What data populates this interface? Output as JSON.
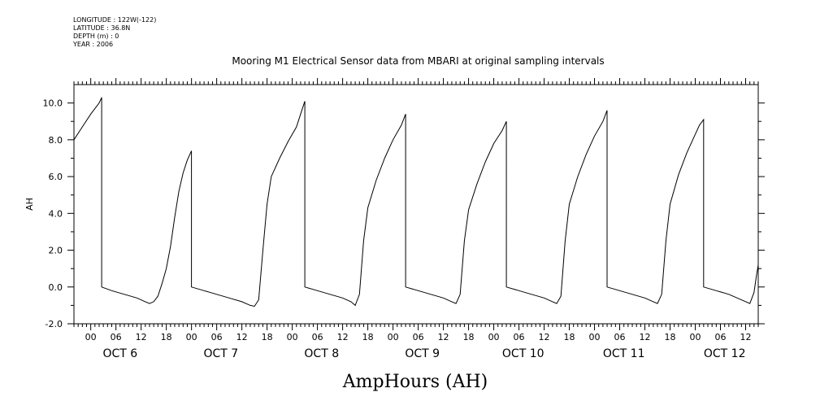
{
  "meta": {
    "longitude": "LONGITUDE : 122W(-122)",
    "latitude": "LATITUDE : 36.8N",
    "depth": "DEPTH (m) : 0",
    "year": "YEAR : 2006"
  },
  "chart_data": {
    "type": "line",
    "title": "Mooring M1 Electrical Sensor data from MBARI at original sampling intervals",
    "xlabel": "AmpHours (AH)",
    "ylabel": "AH",
    "ylim": [
      -2.0,
      11.0
    ],
    "yticks": [
      "-2.0",
      "0.0",
      "2.0",
      "4.0",
      "6.0",
      "8.0",
      "10.0"
    ],
    "ytick_values": [
      -2,
      0,
      2,
      4,
      6,
      8,
      10
    ],
    "xlim_hours": [
      -4,
      159
    ],
    "hour_ticks": [
      "00",
      "06",
      "12",
      "18"
    ],
    "day_labels": [
      "OCT  6",
      "OCT  7",
      "OCT  8",
      "OCT  9",
      "OCT 10",
      "OCT 11",
      "OCT 12"
    ],
    "grid": false,
    "series": [
      {
        "points": [
          [
            -4,
            8.0
          ],
          [
            -2,
            8.7
          ],
          [
            0,
            9.4
          ],
          [
            2,
            10.0
          ],
          [
            2.6,
            10.3
          ],
          [
            2.6,
            0.0
          ],
          [
            5,
            -0.2
          ],
          [
            8,
            -0.4
          ],
          [
            11,
            -0.6
          ],
          [
            13,
            -0.8
          ],
          [
            14,
            -0.9
          ],
          [
            15,
            -0.8
          ],
          [
            16,
            -0.5
          ],
          [
            17,
            0.2
          ],
          [
            18,
            1.0
          ],
          [
            19,
            2.2
          ],
          [
            20,
            3.8
          ],
          [
            21,
            5.2
          ],
          [
            22,
            6.2
          ],
          [
            23,
            6.9
          ],
          [
            24,
            7.4
          ],
          [
            24,
            0.0
          ],
          [
            27,
            -0.2
          ],
          [
            30,
            -0.4
          ],
          [
            33,
            -0.6
          ],
          [
            36,
            -0.8
          ],
          [
            38,
            -1.0
          ],
          [
            39,
            -1.05
          ],
          [
            40,
            -0.7
          ],
          [
            41,
            2.0
          ],
          [
            42,
            4.5
          ],
          [
            43,
            6.0
          ],
          [
            45,
            7.0
          ],
          [
            47,
            7.9
          ],
          [
            49,
            8.7
          ],
          [
            50,
            9.4
          ],
          [
            51,
            10.1
          ],
          [
            51,
            0.0
          ],
          [
            54,
            -0.2
          ],
          [
            57,
            -0.4
          ],
          [
            60,
            -0.6
          ],
          [
            62,
            -0.8
          ],
          [
            63,
            -1.0
          ],
          [
            64,
            -0.4
          ],
          [
            65,
            2.5
          ],
          [
            66,
            4.3
          ],
          [
            68,
            5.8
          ],
          [
            70,
            7.0
          ],
          [
            72,
            8.0
          ],
          [
            74,
            8.8
          ],
          [
            75,
            9.4
          ],
          [
            75,
            0.0
          ],
          [
            78,
            -0.2
          ],
          [
            81,
            -0.4
          ],
          [
            84,
            -0.6
          ],
          [
            86,
            -0.8
          ],
          [
            87,
            -0.9
          ],
          [
            88,
            -0.4
          ],
          [
            89,
            2.5
          ],
          [
            90,
            4.2
          ],
          [
            92,
            5.6
          ],
          [
            94,
            6.8
          ],
          [
            96,
            7.8
          ],
          [
            98,
            8.5
          ],
          [
            99,
            9.0
          ],
          [
            99,
            0.0
          ],
          [
            102,
            -0.2
          ],
          [
            105,
            -0.4
          ],
          [
            108,
            -0.6
          ],
          [
            110,
            -0.8
          ],
          [
            111,
            -0.9
          ],
          [
            112,
            -0.5
          ],
          [
            113,
            2.5
          ],
          [
            114,
            4.5
          ],
          [
            116,
            6.0
          ],
          [
            118,
            7.2
          ],
          [
            120,
            8.2
          ],
          [
            122,
            9.0
          ],
          [
            123,
            9.6
          ],
          [
            123,
            0.0
          ],
          [
            126,
            -0.2
          ],
          [
            129,
            -0.4
          ],
          [
            132,
            -0.6
          ],
          [
            134,
            -0.8
          ],
          [
            135,
            -0.9
          ],
          [
            136,
            -0.4
          ],
          [
            137,
            2.5
          ],
          [
            138,
            4.5
          ],
          [
            140,
            6.1
          ],
          [
            142,
            7.3
          ],
          [
            144,
            8.3
          ],
          [
            145,
            8.8
          ],
          [
            146,
            9.1
          ],
          [
            146,
            0.0
          ],
          [
            149,
            -0.2
          ],
          [
            152,
            -0.4
          ],
          [
            155,
            -0.7
          ],
          [
            157,
            -0.9
          ],
          [
            158,
            -0.3
          ],
          [
            158.5,
            0.5
          ],
          [
            159,
            1.2
          ]
        ]
      }
    ]
  }
}
